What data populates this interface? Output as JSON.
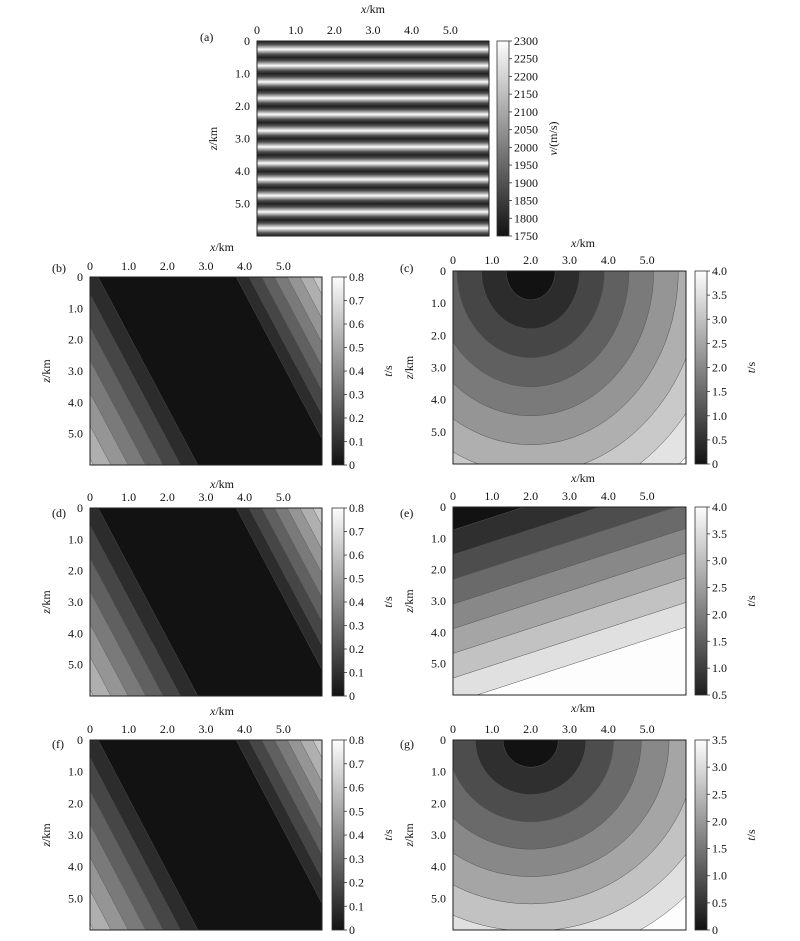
{
  "figure": {
    "panels": [
      {
        "label": "(a)",
        "xlabel": "x/km",
        "ylabel": "z/km",
        "xticks": [
          "0",
          "1.0",
          "2.0",
          "3.0",
          "4.0",
          "5.0"
        ],
        "yticks": [
          "0",
          "1.0",
          "2.0",
          "3.0",
          "4.0",
          "5.0"
        ],
        "colorbar_label": "v/(m/s)",
        "colorbar_ticks": [
          "2300",
          "2250",
          "2200",
          "2150",
          "2100",
          "2050",
          "2000",
          "1950",
          "1900",
          "1850",
          "1800",
          "1750"
        ]
      },
      {
        "label": "(b)",
        "xlabel": "x/km",
        "ylabel": "z/km",
        "xticks": [
          "0",
          "1.0",
          "2.0",
          "3.0",
          "4.0",
          "5.0"
        ],
        "yticks": [
          "0",
          "1.0",
          "2.0",
          "3.0",
          "4.0",
          "5.0"
        ],
        "colorbar_label": "t/s",
        "colorbar_ticks": [
          "0.8",
          "0.7",
          "0.6",
          "0.5",
          "0.4",
          "0.3",
          "0.2",
          "0.1",
          "0"
        ]
      },
      {
        "label": "(c)",
        "xlabel": "x/km",
        "ylabel": "z/km",
        "xticks": [
          "0",
          "1.0",
          "2.0",
          "3.0",
          "4.0",
          "5.0"
        ],
        "yticks": [
          "0",
          "1.0",
          "2.0",
          "3.0",
          "4.0",
          "5.0"
        ],
        "colorbar_label": "t/s",
        "colorbar_ticks": [
          "4.0",
          "3.5",
          "3.0",
          "2.5",
          "2.0",
          "1.5",
          "1.0",
          "0.5",
          "0"
        ]
      },
      {
        "label": "(d)",
        "xlabel": "x/km",
        "ylabel": "z/km",
        "xticks": [
          "0",
          "1.0",
          "2.0",
          "3.0",
          "4.0",
          "5.0"
        ],
        "yticks": [
          "0",
          "1.0",
          "2.0",
          "3.0",
          "4.0",
          "5.0"
        ],
        "colorbar_label": "t/s",
        "colorbar_ticks": [
          "0.8",
          "0.7",
          "0.6",
          "0.5",
          "0.4",
          "0.3",
          "0.2",
          "0.1",
          "0"
        ]
      },
      {
        "label": "(e)",
        "xlabel": "x/km",
        "ylabel": "z/km",
        "xticks": [
          "0",
          "1.0",
          "2.0",
          "3.0",
          "4.0",
          "5.0"
        ],
        "yticks": [
          "0",
          "1.0",
          "2.0",
          "3.0",
          "4.0",
          "5.0"
        ],
        "colorbar_label": "t/s",
        "colorbar_ticks": [
          "4.0",
          "3.5",
          "3.0",
          "2.5",
          "2.0",
          "1.5",
          "1.0",
          "0.5"
        ]
      },
      {
        "label": "(f)",
        "xlabel": "x/km",
        "ylabel": "z/km",
        "xticks": [
          "0",
          "1.0",
          "2.0",
          "3.0",
          "4.0",
          "5.0"
        ],
        "yticks": [
          "0",
          "1.0",
          "2.0",
          "3.0",
          "4.0",
          "5.0"
        ],
        "colorbar_label": "t/s",
        "colorbar_ticks": [
          "0.8",
          "0.7",
          "0.6",
          "0.5",
          "0.4",
          "0.3",
          "0.2",
          "0.1",
          "0"
        ]
      },
      {
        "label": "(g)",
        "xlabel": "x/km",
        "ylabel": "z/km",
        "xticks": [
          "0",
          "1.0",
          "2.0",
          "3.0",
          "4.0",
          "5.0"
        ],
        "yticks": [
          "0",
          "1.0",
          "2.0",
          "3.0",
          "4.0",
          "5.0"
        ],
        "colorbar_label": "t/s",
        "colorbar_ticks": [
          "3.5",
          "3.0",
          "2.5",
          "2.0",
          "1.5",
          "1.0",
          "0.5",
          "0"
        ]
      }
    ]
  },
  "chart_data": [
    {
      "type": "heatmap",
      "panel": "(a)",
      "description_kind": "velocity model with horizontal layers",
      "x_range": [
        0,
        6.0
      ],
      "z_range": [
        0,
        6.0
      ],
      "layers": 12,
      "value_range": [
        1730,
        2300
      ],
      "colorbar_ticks": [
        2300,
        2250,
        2200,
        2150,
        2100,
        2050,
        2000,
        1950,
        1900,
        1850,
        1800,
        1750
      ],
      "colorbar_label": "v/(m/s)"
    },
    {
      "type": "heatmap",
      "panel": "(b)",
      "x_range": [
        0,
        6.0
      ],
      "z_range": [
        0,
        6.0
      ],
      "value_range": [
        0,
        0.8
      ],
      "colorbar_ticks": [
        0.8,
        0.7,
        0.6,
        0.5,
        0.4,
        0.3,
        0.2,
        0.1,
        0
      ],
      "colorbar_label": "t/s",
      "contour_levels": 9
    },
    {
      "type": "heatmap",
      "panel": "(c)",
      "x_range": [
        0,
        6.0
      ],
      "z_range": [
        0,
        6.0
      ],
      "value_range": [
        0,
        4.0
      ],
      "colorbar_ticks": [
        4.0,
        3.5,
        3.0,
        2.5,
        2.0,
        1.5,
        1.0,
        0.5,
        0
      ],
      "colorbar_label": "t/s",
      "source_x": 2.0,
      "source_z": 0
    },
    {
      "type": "heatmap",
      "panel": "(d)",
      "x_range": [
        0,
        6.0
      ],
      "z_range": [
        0,
        6.0
      ],
      "value_range": [
        0,
        0.8
      ],
      "colorbar_ticks": [
        0.8,
        0.7,
        0.6,
        0.5,
        0.4,
        0.3,
        0.2,
        0.1,
        0
      ],
      "colorbar_label": "t/s",
      "contour_levels": 9
    },
    {
      "type": "heatmap",
      "panel": "(e)",
      "x_range": [
        0,
        6.0
      ],
      "z_range": [
        0,
        6.0
      ],
      "value_range": [
        0.3,
        4.0
      ],
      "colorbar_ticks": [
        4.0,
        3.5,
        3.0,
        2.5,
        2.0,
        1.5,
        1.0,
        0.5
      ],
      "colorbar_label": "t/s"
    },
    {
      "type": "heatmap",
      "panel": "(f)",
      "x_range": [
        0,
        6.0
      ],
      "z_range": [
        0,
        6.0
      ],
      "value_range": [
        0,
        0.8
      ],
      "colorbar_ticks": [
        0.8,
        0.7,
        0.6,
        0.5,
        0.4,
        0.3,
        0.2,
        0.1,
        0
      ],
      "colorbar_label": "t/s",
      "contour_levels": 9
    },
    {
      "type": "heatmap",
      "panel": "(g)",
      "x_range": [
        0,
        6.0
      ],
      "z_range": [
        0,
        6.0
      ],
      "value_range": [
        0,
        3.5
      ],
      "colorbar_ticks": [
        3.5,
        3.0,
        2.5,
        2.0,
        1.5,
        1.0,
        0.5,
        0
      ],
      "colorbar_label": "t/s",
      "source_x": 2.0,
      "source_z": 0
    }
  ]
}
